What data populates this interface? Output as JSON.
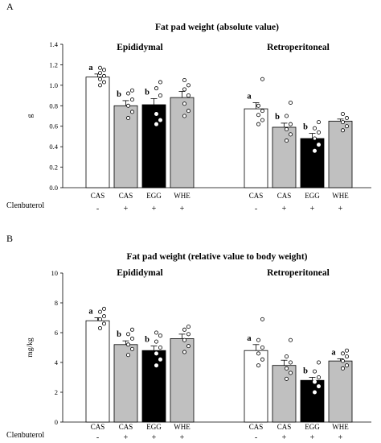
{
  "chart_data": [
    {
      "panel": "A",
      "type": "bar",
      "title": "Fat pad weight   (absolute value)",
      "ylabel": "g",
      "ylim": [
        0,
        1.4
      ],
      "yticks": [
        "0.0",
        "0.2",
        "0.4",
        "0.6",
        "0.8",
        "1.0",
        "1.2",
        "1.4"
      ],
      "treatment_label": "Clenbuterol",
      "groups": [
        {
          "name": "Epididymal",
          "bars": [
            {
              "category": "CAS",
              "treatment": "-",
              "value": 1.08,
              "error": 0.03,
              "color": "#ffffff",
              "letter": "a",
              "points": [
                1.0,
                1.03,
                1.06,
                1.09,
                1.12,
                1.15,
                1.17
              ]
            },
            {
              "category": "CAS",
              "treatment": "+",
              "value": 0.8,
              "error": 0.05,
              "color": "#c0c0c0",
              "letter": "b",
              "points": [
                0.68,
                0.74,
                0.8,
                0.86,
                0.92,
                0.95
              ]
            },
            {
              "category": "EGG",
              "treatment": "+",
              "value": 0.81,
              "error": 0.06,
              "color": "#000000",
              "letter": "b",
              "points": [
                0.62,
                0.66,
                0.72,
                0.9,
                0.97,
                1.03
              ]
            },
            {
              "category": "WHE",
              "treatment": "+",
              "value": 0.88,
              "error": 0.06,
              "color": "#c0c0c0",
              "letter": "",
              "points": [
                0.7,
                0.75,
                0.82,
                0.9,
                0.96,
                1.0,
                1.05
              ]
            }
          ]
        },
        {
          "name": "Retroperitoneal",
          "bars": [
            {
              "category": "CAS",
              "treatment": "-",
              "value": 0.77,
              "error": 0.06,
              "color": "#ffffff",
              "letter": "a",
              "points": [
                0.62,
                0.66,
                0.71,
                0.75,
                0.8,
                1.06
              ]
            },
            {
              "category": "CAS",
              "treatment": "+",
              "value": 0.59,
              "error": 0.04,
              "color": "#c0c0c0",
              "letter": "b",
              "points": [
                0.46,
                0.52,
                0.57,
                0.62,
                0.7,
                0.83
              ]
            },
            {
              "category": "EGG",
              "treatment": "+",
              "value": 0.48,
              "error": 0.05,
              "color": "#000000",
              "letter": "b",
              "points": [
                0.36,
                0.42,
                0.48,
                0.54,
                0.58,
                0.64
              ]
            },
            {
              "category": "WHE",
              "treatment": "+",
              "value": 0.65,
              "error": 0.02,
              "color": "#c0c0c0",
              "letter": "",
              "points": [
                0.56,
                0.6,
                0.64,
                0.68,
                0.72
              ]
            }
          ]
        }
      ]
    },
    {
      "panel": "B",
      "type": "bar",
      "title": "Fat pad weight (relative value to body weight)",
      "ylabel": "mg/kg",
      "ylim": [
        0,
        10
      ],
      "yticks": [
        "0",
        "2",
        "4",
        "6",
        "8",
        "10"
      ],
      "treatment_label": "Clenbuterol",
      "groups": [
        {
          "name": "Epididymal",
          "bars": [
            {
              "category": "CAS",
              "treatment": "-",
              "value": 6.8,
              "error": 0.2,
              "color": "#ffffff",
              "letter": "a",
              "points": [
                6.3,
                6.6,
                6.9,
                7.1,
                7.4,
                7.6
              ]
            },
            {
              "category": "CAS",
              "treatment": "+",
              "value": 5.2,
              "error": 0.25,
              "color": "#c0c0c0",
              "letter": "b",
              "points": [
                4.5,
                4.9,
                5.2,
                5.6,
                5.9,
                6.2
              ]
            },
            {
              "category": "EGG",
              "treatment": "+",
              "value": 4.8,
              "error": 0.3,
              "color": "#000000",
              "letter": "b",
              "points": [
                3.8,
                4.2,
                4.6,
                5.0,
                5.4,
                5.8,
                6.0
              ]
            },
            {
              "category": "WHE",
              "treatment": "+",
              "value": 5.6,
              "error": 0.3,
              "color": "#c0c0c0",
              "letter": "",
              "points": [
                4.7,
                5.1,
                5.5,
                5.9,
                6.2,
                6.4
              ]
            }
          ]
        },
        {
          "name": "Retroperitoneal",
          "bars": [
            {
              "category": "CAS",
              "treatment": "-",
              "value": 4.8,
              "error": 0.4,
              "color": "#ffffff",
              "letter": "a",
              "points": [
                3.8,
                4.2,
                4.6,
                5.0,
                5.5,
                6.9
              ]
            },
            {
              "category": "CAS",
              "treatment": "+",
              "value": 3.8,
              "error": 0.35,
              "color": "#c0c0c0",
              "letter": "",
              "points": [
                2.9,
                3.3,
                3.6,
                4.0,
                4.4,
                5.5
              ]
            },
            {
              "category": "EGG",
              "treatment": "+",
              "value": 2.8,
              "error": 0.2,
              "color": "#000000",
              "letter": "b",
              "points": [
                2.0,
                2.4,
                2.7,
                3.0,
                3.4,
                4.0
              ]
            },
            {
              "category": "WHE",
              "treatment": "+",
              "value": 4.1,
              "error": 0.15,
              "color": "#c0c0c0",
              "letter": "a",
              "points": [
                3.6,
                3.8,
                4.1,
                4.4,
                4.6,
                4.8
              ]
            }
          ]
        }
      ]
    }
  ]
}
